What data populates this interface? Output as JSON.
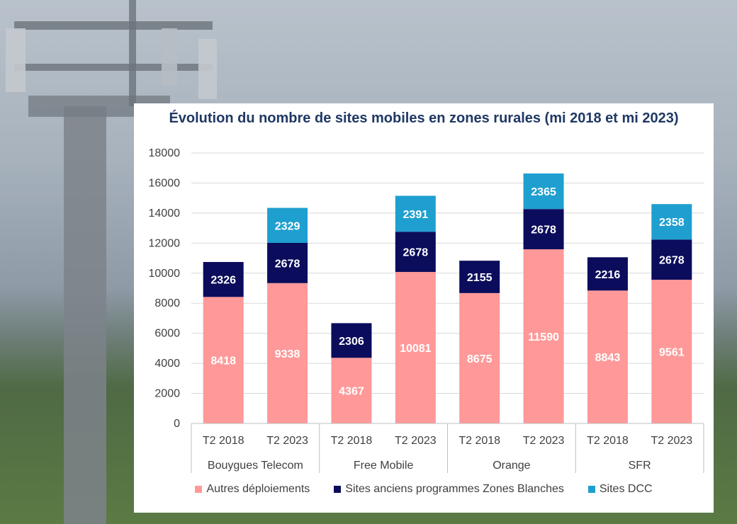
{
  "chart_data": {
    "type": "bar",
    "stacked": true,
    "title": "Évolution du nombre de sites mobiles en zones rurales (mi 2018 et mi 2023)",
    "xlabel": "",
    "ylabel": "",
    "ylim": [
      0,
      18000
    ],
    "yticks": [
      0,
      2000,
      4000,
      6000,
      8000,
      10000,
      12000,
      14000,
      16000,
      18000
    ],
    "grid": true,
    "legend_position": "bottom",
    "groups": [
      {
        "name": "Bouygues Telecom",
        "categories": [
          "T2 2018",
          "T2 2023"
        ]
      },
      {
        "name": "Free Mobile",
        "categories": [
          "T2 2018",
          "T2 2023"
        ]
      },
      {
        "name": "Orange",
        "categories": [
          "T2 2018",
          "T2 2023"
        ]
      },
      {
        "name": "SFR",
        "categories": [
          "T2 2018",
          "T2 2023"
        ]
      }
    ],
    "categories": [
      "T2 2018",
      "T2 2023",
      "T2 2018",
      "T2 2023",
      "T2 2018",
      "T2 2023",
      "T2 2018",
      "T2 2023"
    ],
    "series": [
      {
        "name": "Autres déploiements",
        "color": "#ff9999",
        "label_color": "#ffffff",
        "values": [
          8418,
          9338,
          4367,
          10081,
          8675,
          11590,
          8843,
          9561
        ]
      },
      {
        "name": "Sites anciens programmes Zones Blanches",
        "color": "#0c0c5c",
        "label_color": "#ffffff",
        "values": [
          2326,
          2678,
          2306,
          2678,
          2155,
          2678,
          2216,
          2678
        ]
      },
      {
        "name": "Sites DCC",
        "color": "#1f9fd0",
        "label_color": "#ffffff",
        "values": [
          null,
          2329,
          null,
          2391,
          null,
          2365,
          null,
          2358
        ]
      }
    ]
  }
}
